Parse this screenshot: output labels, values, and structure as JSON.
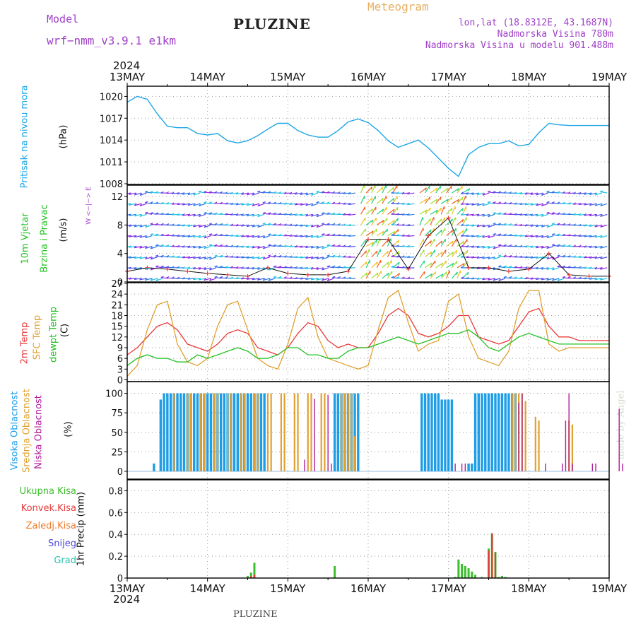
{
  "header": {
    "model_label": "Model",
    "model_name": "wrf−nmm_v3.9.1  e1km",
    "title": "PLUZINE",
    "meteogram": "Meteogram",
    "lonlat": "lon,lat (18.8312E, 43.1687N)",
    "elevation": "Nadmorska Visina 780m",
    "model_elevation": "Nadmorska Visina u modelu 901.488m",
    "footer_title": "PLUZINE",
    "watermark": "made by Angel"
  },
  "time_axis": {
    "year": "2024",
    "ticks": [
      "13MAY",
      "14MAY",
      "15MAY",
      "16MAY",
      "17MAY",
      "18MAY",
      "19MAY"
    ]
  },
  "panel_labels": {
    "pressure": {
      "l1": "Pritisak na nivou mora",
      "unit": "(hPa)"
    },
    "wind": {
      "l1": "10m Vjetar",
      "l2": "Brzina i Pravac",
      "unit": "(m/s)",
      "compass": "W <−|−> E"
    },
    "temp": {
      "l1": "2m Temp",
      "l2": "SFC Temp",
      "l3": "dewpt Temp",
      "unit": "(C)"
    },
    "cloud": {
      "l1": "Visoka Oblacnost",
      "l2": "Srednja Oblacnost",
      "l3": "Niska Oblacnost",
      "unit": "(%)"
    },
    "precip": {
      "l1": "Ukupna Kisa",
      "l2": "Konvek.Kisa",
      "l3": "Zaledj.Kisa",
      "l4": "Snijeg",
      "l5": "Grad",
      "unit": "1hr Precip (mm)"
    }
  },
  "colors": {
    "pressure": "#1ea6e6",
    "temp2m": "#e83a3a",
    "tempsfc": "#e0a030",
    "dewpt": "#22c022",
    "cloud_high": "#1e9ee6",
    "cloud_mid": "#e0a030",
    "cloud_low": "#b01e9a",
    "precip_total": "#3cbf2c",
    "precip_conv": "#e83a3a",
    "precip_frz": "#f07a2a",
    "precip_snow": "#4848e0",
    "precip_hail": "#2cc0b0",
    "model": "#a040c8",
    "meteogram": "#e8b060",
    "wind_label": "#22c022"
  },
  "chart_data": [
    {
      "type": "line",
      "name": "pressure",
      "ylabel": "(hPa)",
      "ylim": [
        1008,
        1021
      ],
      "yticks": [
        1008,
        1011,
        1014,
        1017,
        1020
      ],
      "x_hours": [
        0,
        3,
        6,
        9,
        12,
        15,
        18,
        21,
        24,
        27,
        30,
        33,
        36,
        39,
        42,
        45,
        48,
        51,
        54,
        57,
        60,
        63,
        66,
        69,
        72,
        75,
        78,
        81,
        84,
        87,
        90,
        93,
        96,
        99,
        102,
        105,
        108,
        111,
        114,
        117,
        120,
        123,
        126,
        129,
        132,
        135,
        138,
        141,
        144
      ],
      "series": [
        {
          "values": [
            1019.2,
            1020.0,
            1019.6,
            1017.6,
            1015.9,
            1015.7,
            1015.7,
            1014.9,
            1014.7,
            1014.9,
            1013.9,
            1013.6,
            1013.9,
            1014.6,
            1015.5,
            1016.3,
            1016.3,
            1015.3,
            1014.7,
            1014.4,
            1014.4,
            1015.3,
            1016.5,
            1016.9,
            1016.4,
            1015.3,
            1013.9,
            1013.0,
            1013.5,
            1014.0,
            1012.9,
            1011.5,
            1010.1,
            1009.0,
            1012.0,
            1013.0,
            1013.5,
            1013.5,
            1013.9,
            1013.2,
            1013.4,
            1015.0,
            1016.3,
            1016.1,
            1016.0,
            1016.0,
            1016.0,
            1016.0,
            1016.0
          ]
        }
      ]
    },
    {
      "type": "scatter",
      "name": "wind",
      "ylabel": "(m/s)",
      "ylim": [
        0,
        14
      ],
      "yticks": [
        0,
        4,
        8,
        12
      ],
      "x_hours": [
        0,
        6,
        12,
        18,
        24,
        30,
        36,
        42,
        48,
        54,
        60,
        66,
        72,
        78,
        84,
        90,
        96,
        102,
        108,
        114,
        120,
        126,
        132,
        138,
        144
      ],
      "series": [
        {
          "name": "speed",
          "values": [
            1.5,
            2.0,
            1.8,
            1.5,
            1.2,
            1.0,
            0.8,
            2.0,
            1.2,
            1.0,
            1.0,
            1.5,
            6.0,
            6.0,
            1.8,
            6.5,
            9.0,
            2.0,
            2.0,
            1.5,
            1.8,
            4.0,
            1.0,
            0.8,
            0.8
          ]
        }
      ]
    },
    {
      "type": "line",
      "name": "temperature",
      "ylabel": "(C)",
      "ylim": [
        0,
        27
      ],
      "yticks": [
        0,
        3,
        6,
        9,
        12,
        15,
        18,
        21,
        24,
        27
      ],
      "x_hours": [
        0,
        3,
        6,
        9,
        12,
        15,
        18,
        21,
        24,
        27,
        30,
        33,
        36,
        39,
        42,
        45,
        48,
        51,
        54,
        57,
        60,
        63,
        66,
        69,
        72,
        75,
        78,
        81,
        84,
        87,
        90,
        93,
        96,
        99,
        102,
        105,
        108,
        111,
        114,
        117,
        120,
        123,
        126,
        129,
        132,
        135,
        138,
        141,
        144
      ],
      "series": [
        {
          "name": "2m Temp",
          "values": [
            7,
            9,
            12,
            15,
            16,
            14,
            10,
            9,
            8,
            10,
            13,
            14,
            13,
            9,
            8,
            7,
            9,
            13,
            16,
            15,
            11,
            9,
            10,
            9,
            9,
            13,
            18,
            20,
            18,
            13,
            12,
            13,
            15,
            18,
            18,
            12,
            11,
            10,
            11,
            15,
            19,
            20,
            15,
            12,
            12,
            11,
            11,
            11,
            11
          ]
        },
        {
          "name": "SFC Temp",
          "values": [
            1,
            4,
            14,
            21,
            22,
            10,
            5,
            4,
            6,
            15,
            21,
            22,
            14,
            6,
            4,
            3,
            10,
            20,
            23,
            12,
            6,
            5,
            4,
            3,
            4,
            14,
            23,
            25,
            16,
            8,
            10,
            11,
            22,
            24,
            12,
            6,
            5,
            4,
            8,
            20,
            25,
            25,
            10,
            8,
            9,
            9,
            9,
            9,
            9
          ]
        },
        {
          "name": "dewpt Temp",
          "values": [
            4,
            6,
            7,
            6,
            6,
            5,
            5,
            7,
            6,
            7,
            8,
            9,
            8,
            6,
            6,
            7,
            9,
            9,
            7,
            7,
            6,
            6,
            8,
            9,
            9,
            10,
            11,
            12,
            11,
            10,
            11,
            12,
            13,
            13,
            14,
            12,
            9,
            8,
            10,
            12,
            13,
            12,
            11,
            10,
            10,
            10,
            10,
            10,
            10
          ]
        }
      ]
    },
    {
      "type": "bar",
      "name": "cloudiness",
      "ylabel": "(%)",
      "ylim": [
        0,
        105
      ],
      "yticks": [
        0,
        25,
        50,
        75,
        100
      ],
      "series": [
        {
          "name": "Visoka Oblacnost",
          "x_hours": [
            8,
            10,
            11,
            12,
            13,
            14,
            15,
            16,
            17,
            18,
            19,
            20,
            21,
            22,
            23,
            24,
            25,
            26,
            27,
            28,
            29,
            30,
            31,
            32,
            33,
            34,
            35,
            36,
            37,
            38,
            39,
            40,
            41,
            62,
            63,
            64,
            65,
            66,
            67,
            68,
            69,
            88,
            89,
            90,
            91,
            92,
            93,
            94,
            95,
            96,
            97,
            102,
            103,
            104,
            105,
            106,
            107,
            108,
            109,
            110,
            111,
            112,
            113,
            114,
            115,
            116
          ],
          "values": [
            10,
            92,
            100,
            100,
            100,
            100,
            100,
            100,
            100,
            100,
            100,
            100,
            100,
            100,
            100,
            100,
            100,
            100,
            100,
            100,
            100,
            100,
            100,
            100,
            100,
            100,
            100,
            100,
            100,
            100,
            100,
            100,
            100,
            100,
            100,
            100,
            100,
            100,
            100,
            100,
            100,
            100,
            100,
            100,
            100,
            100,
            100,
            92,
            92,
            92,
            92,
            10,
            10,
            100,
            100,
            100,
            100,
            100,
            100,
            100,
            100,
            100,
            100,
            100,
            100,
            100
          ]
        },
        {
          "name": "Srednja Oblacnost",
          "x_hours": [
            14,
            18,
            19,
            22,
            23,
            26,
            27,
            30,
            31,
            34,
            35,
            38,
            39,
            42,
            43,
            46,
            47,
            50,
            51,
            54,
            55,
            58,
            59,
            64,
            65,
            66,
            67,
            68,
            115,
            116,
            117,
            118,
            119,
            122,
            123,
            132,
            133
          ],
          "values": [
            100,
            100,
            100,
            100,
            100,
            100,
            100,
            100,
            100,
            100,
            100,
            100,
            100,
            100,
            100,
            100,
            100,
            100,
            100,
            100,
            100,
            100,
            100,
            100,
            100,
            100,
            100,
            45,
            100,
            100,
            100,
            100,
            90,
            70,
            65,
            65,
            60
          ]
        },
        {
          "name": "Niska Oblacnost",
          "x_hours": [
            53,
            56,
            60,
            61,
            98,
            100,
            101,
            117,
            118,
            125,
            130,
            131,
            132,
            133,
            139,
            140,
            147,
            148
          ],
          "values": [
            15,
            93,
            98,
            10,
            10,
            10,
            10,
            88,
            100,
            10,
            10,
            65,
            100,
            10,
            10,
            10,
            80,
            10
          ]
        }
      ]
    },
    {
      "type": "bar",
      "name": "precipitation",
      "ylabel": "1hr Precip (mm)",
      "ylim": [
        0,
        0.9
      ],
      "yticks": [
        0,
        0.2,
        0.4,
        0.6,
        0.8
      ],
      "series": [
        {
          "name": "Ukupna Kisa",
          "x_hours": [
            36,
            37,
            38,
            62,
            98,
            99,
            100,
            101,
            102,
            103,
            104,
            106,
            108,
            109,
            110,
            111,
            112,
            113
          ],
          "values": [
            0.02,
            0.05,
            0.14,
            0.11,
            0.01,
            0.17,
            0.13,
            0.11,
            0.09,
            0.06,
            0.03,
            0.01,
            0.27,
            0.41,
            0.24,
            0.01,
            0.02,
            0.01
          ]
        },
        {
          "name": "Konvek.Kisa",
          "x_hours": [
            37,
            38,
            108,
            109,
            110
          ],
          "values": [
            0.02,
            0.03,
            0.25,
            0.41,
            0.23
          ]
        }
      ]
    }
  ]
}
